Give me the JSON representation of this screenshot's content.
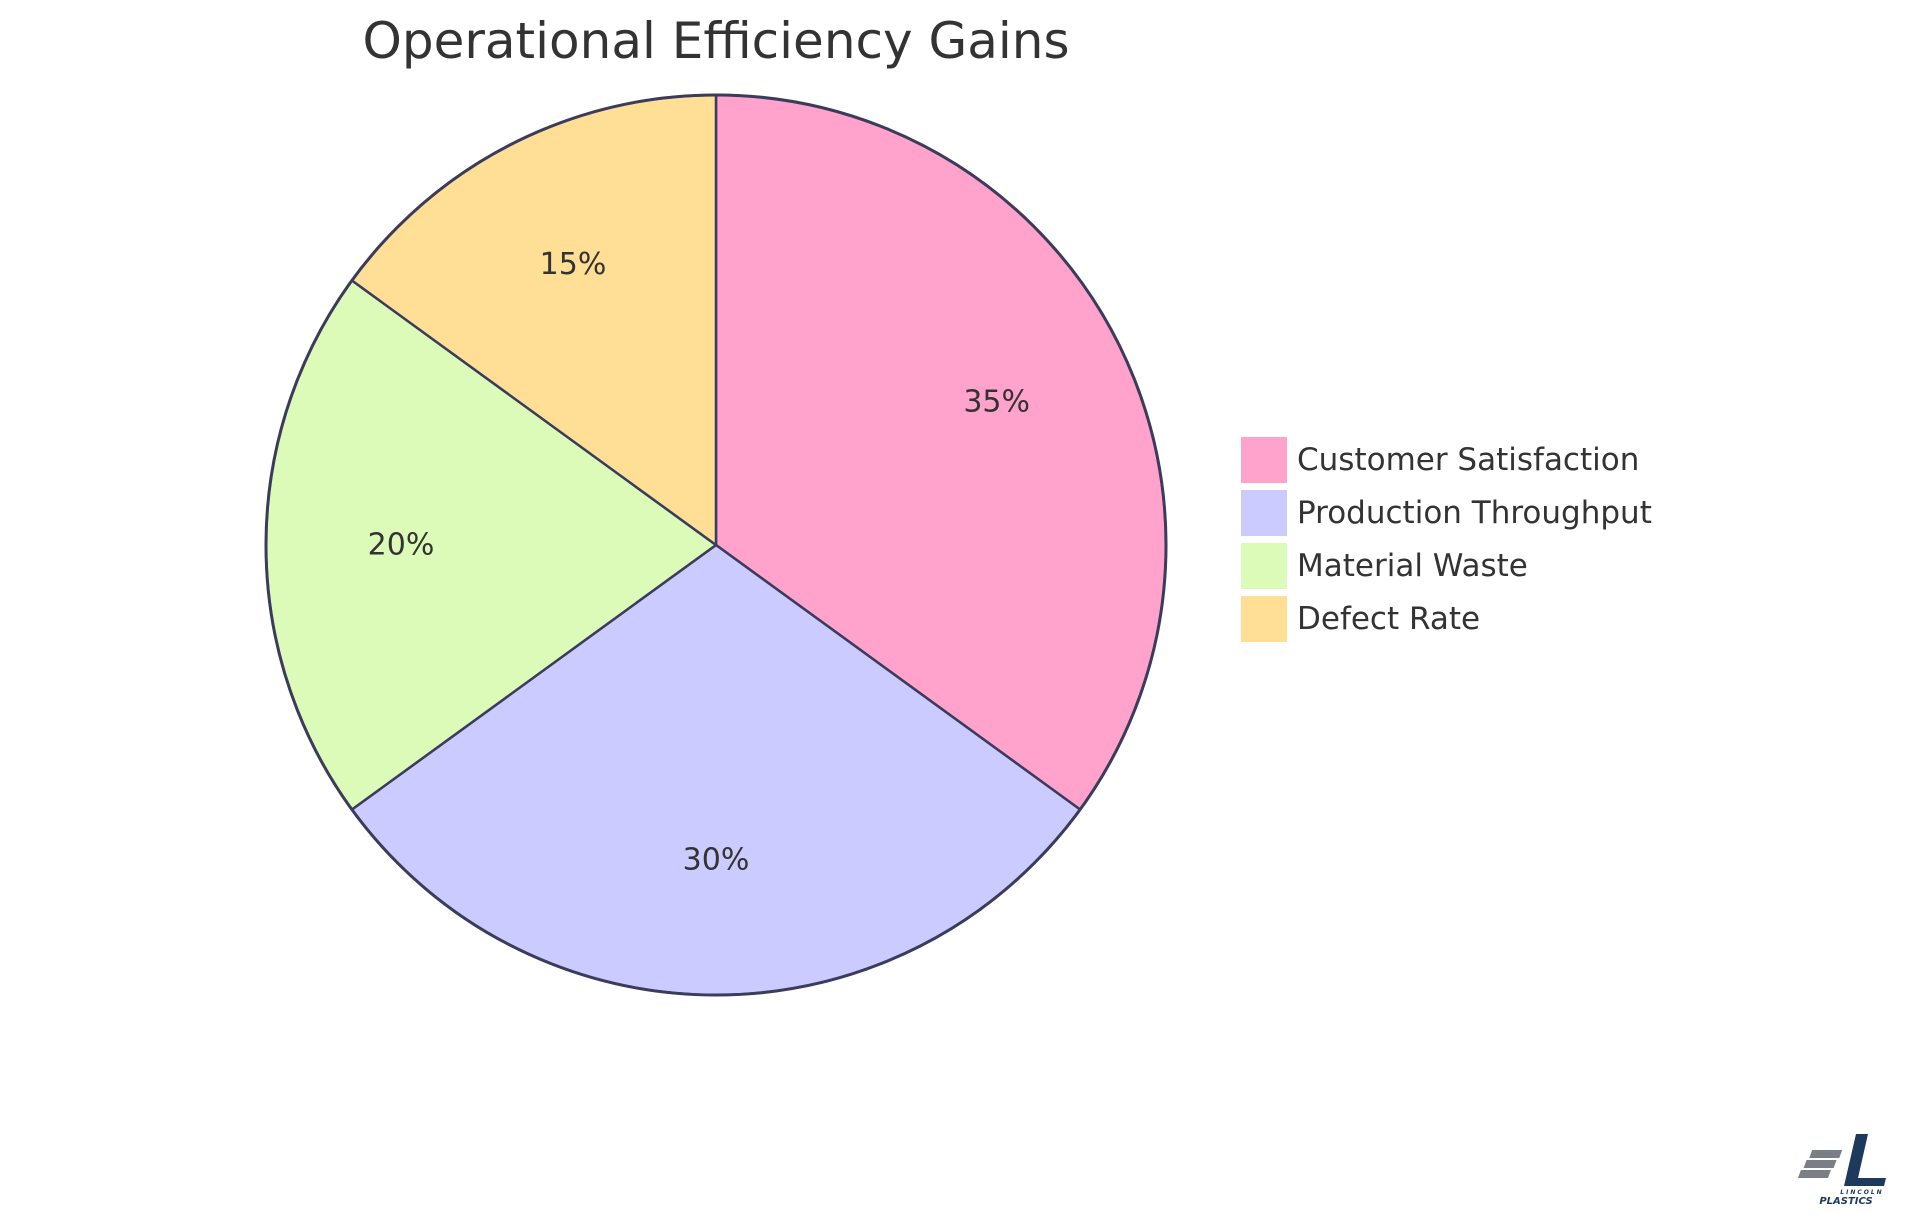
{
  "chart_data": {
    "type": "pie",
    "title": "Operational Efficiency Gains",
    "categories": [
      "Customer Satisfaction",
      "Production Throughput",
      "Material Waste",
      "Defect Rate"
    ],
    "values": [
      35,
      30,
      20,
      15
    ],
    "value_labels": [
      "35%",
      "30%",
      "20%",
      "15%"
    ],
    "colors": [
      "#ffa2cc",
      "#cbcbff",
      "#dcfbb8",
      "#ffde96"
    ],
    "legend_placement": "right"
  },
  "logo": {
    "line1": "LINCOLN",
    "line2": "PLASTICS"
  }
}
